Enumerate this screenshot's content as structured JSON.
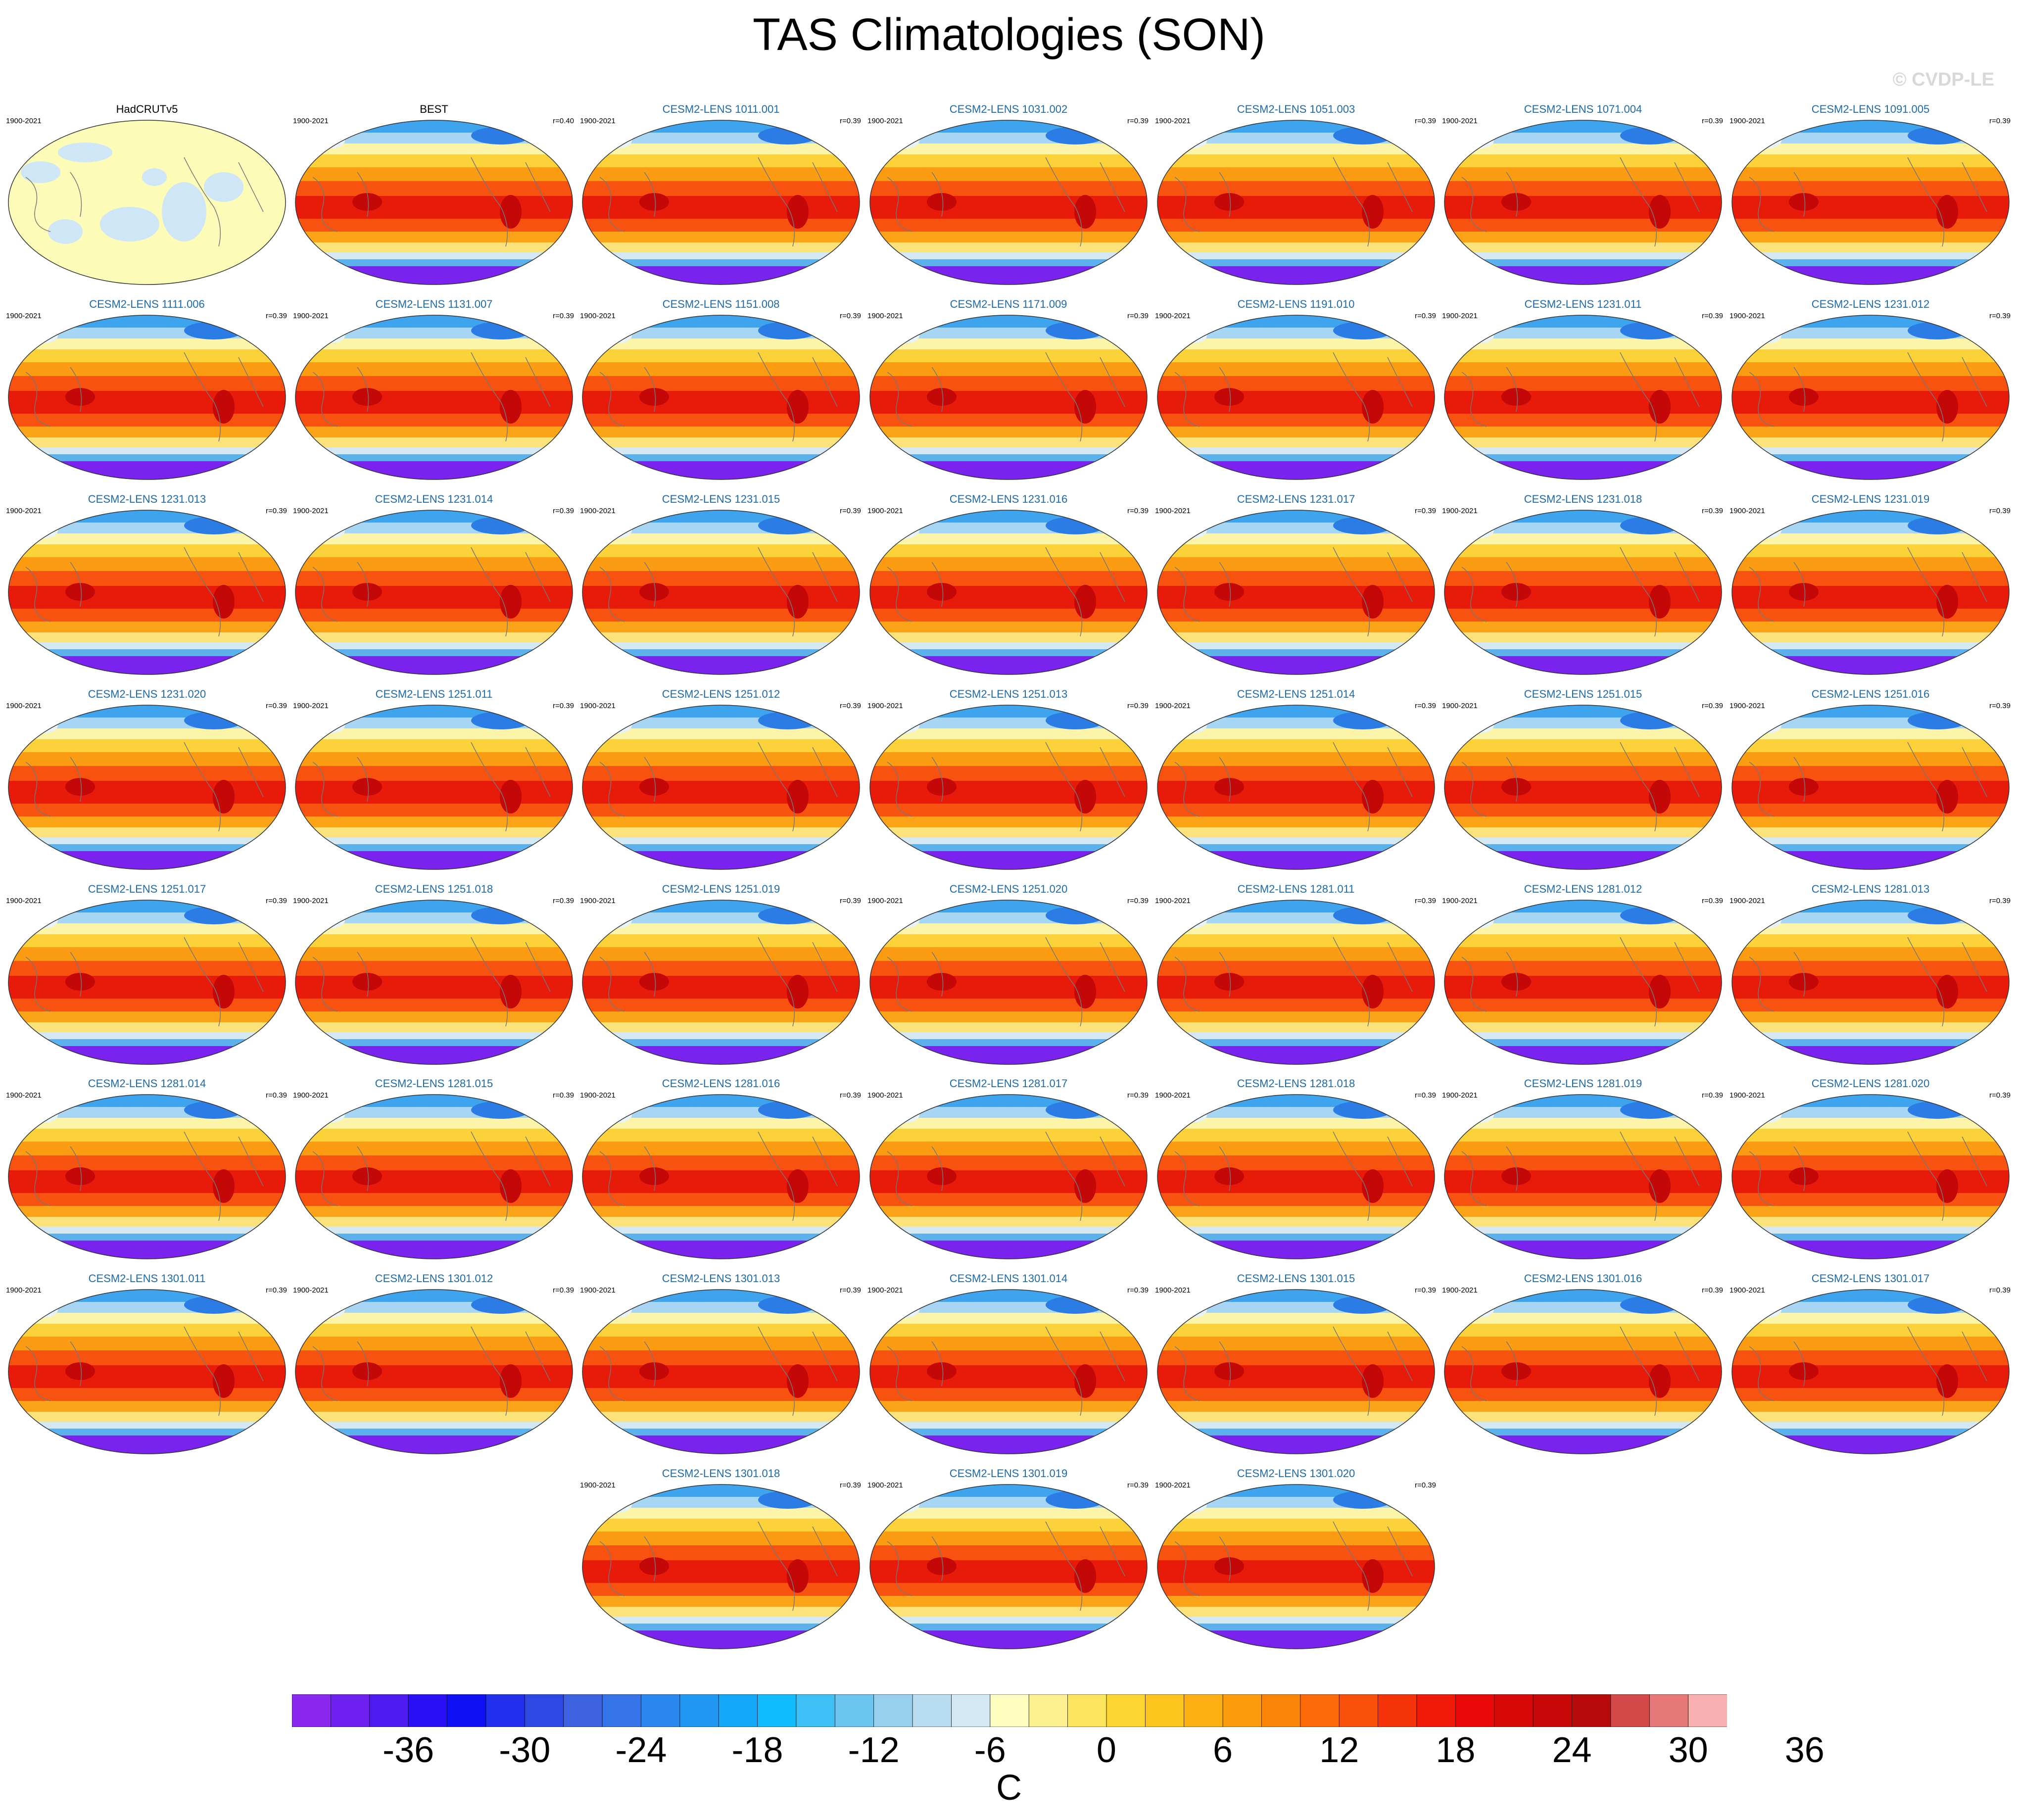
{
  "chart_data": {
    "type": "heatmap",
    "title": "TAS Climatologies (SON)",
    "watermark": "© CVDP-LE",
    "units": "C",
    "colorbar": {
      "ticks": [
        "-36",
        "-30",
        "-24",
        "-18",
        "-12",
        "-6",
        "0",
        "6",
        "12",
        "18",
        "24",
        "30",
        "36"
      ],
      "levels": [
        -42,
        -39,
        -36,
        -33,
        -30,
        -27,
        -24,
        -21,
        -18,
        -15,
        -12,
        -9,
        -6,
        -3,
        0,
        3,
        6,
        9,
        12,
        15,
        18,
        21,
        24,
        27,
        30,
        33,
        36,
        39,
        42
      ],
      "colors": [
        "#8a28f0",
        "#6e20f0",
        "#4c1cf2",
        "#2a10f4",
        "#1010f4",
        "#2030ec",
        "#2e48e4",
        "#3c62e0",
        "#3474e8",
        "#2a88ee",
        "#2098f4",
        "#16a8f8",
        "#10bcfc",
        "#3ec0f4",
        "#6cc6f0",
        "#96d0ee",
        "#b8dcf0",
        "#d4e8f4",
        "#fefec0",
        "#fcf090",
        "#fce45c",
        "#fcd630",
        "#fcc41c",
        "#fcb014",
        "#fc9c0c",
        "#fc8408",
        "#fc6a08",
        "#f85008",
        "#f43408",
        "#f01a08",
        "#e80808",
        "#d80808",
        "#c80808",
        "#b80a0a",
        "#d44848",
        "#e67878",
        "#f8b0b0"
      ]
    },
    "panels": [
      {
        "name": "HadCRUTv5",
        "period": "1900-2021",
        "r": "",
        "kind": "obs"
      },
      {
        "name": "BEST",
        "period": "1900-2021",
        "r": "r=0.40",
        "kind": "best"
      },
      {
        "name": "CESM2-LENS 1011.001",
        "period": "1900-2021",
        "r": "r=0.39",
        "kind": "model"
      },
      {
        "name": "CESM2-LENS 1031.002",
        "period": "1900-2021",
        "r": "r=0.39",
        "kind": "model"
      },
      {
        "name": "CESM2-LENS 1051.003",
        "period": "1900-2021",
        "r": "r=0.39",
        "kind": "model"
      },
      {
        "name": "CESM2-LENS 1071.004",
        "period": "1900-2021",
        "r": "r=0.39",
        "kind": "model"
      },
      {
        "name": "CESM2-LENS 1091.005",
        "period": "1900-2021",
        "r": "r=0.39",
        "kind": "model"
      },
      {
        "name": "CESM2-LENS 1111.006",
        "period": "1900-2021",
        "r": "r=0.39",
        "kind": "model"
      },
      {
        "name": "CESM2-LENS 1131.007",
        "period": "1900-2021",
        "r": "r=0.39",
        "kind": "model"
      },
      {
        "name": "CESM2-LENS 1151.008",
        "period": "1900-2021",
        "r": "r=0.39",
        "kind": "model"
      },
      {
        "name": "CESM2-LENS 1171.009",
        "period": "1900-2021",
        "r": "r=0.39",
        "kind": "model"
      },
      {
        "name": "CESM2-LENS 1191.010",
        "period": "1900-2021",
        "r": "r=0.39",
        "kind": "model"
      },
      {
        "name": "CESM2-LENS 1231.011",
        "period": "1900-2021",
        "r": "r=0.39",
        "kind": "model"
      },
      {
        "name": "CESM2-LENS 1231.012",
        "period": "1900-2021",
        "r": "r=0.39",
        "kind": "model"
      },
      {
        "name": "CESM2-LENS 1231.013",
        "period": "1900-2021",
        "r": "r=0.39",
        "kind": "model"
      },
      {
        "name": "CESM2-LENS 1231.014",
        "period": "1900-2021",
        "r": "r=0.39",
        "kind": "model"
      },
      {
        "name": "CESM2-LENS 1231.015",
        "period": "1900-2021",
        "r": "r=0.39",
        "kind": "model"
      },
      {
        "name": "CESM2-LENS 1231.016",
        "period": "1900-2021",
        "r": "r=0.39",
        "kind": "model"
      },
      {
        "name": "CESM2-LENS 1231.017",
        "period": "1900-2021",
        "r": "r=0.39",
        "kind": "model"
      },
      {
        "name": "CESM2-LENS 1231.018",
        "period": "1900-2021",
        "r": "r=0.39",
        "kind": "model"
      },
      {
        "name": "CESM2-LENS 1231.019",
        "period": "1900-2021",
        "r": "r=0.39",
        "kind": "model"
      },
      {
        "name": "CESM2-LENS 1231.020",
        "period": "1900-2021",
        "r": "r=0.39",
        "kind": "model"
      },
      {
        "name": "CESM2-LENS 1251.011",
        "period": "1900-2021",
        "r": "r=0.39",
        "kind": "model"
      },
      {
        "name": "CESM2-LENS 1251.012",
        "period": "1900-2021",
        "r": "r=0.39",
        "kind": "model"
      },
      {
        "name": "CESM2-LENS 1251.013",
        "period": "1900-2021",
        "r": "r=0.39",
        "kind": "model"
      },
      {
        "name": "CESM2-LENS 1251.014",
        "period": "1900-2021",
        "r": "r=0.39",
        "kind": "model"
      },
      {
        "name": "CESM2-LENS 1251.015",
        "period": "1900-2021",
        "r": "r=0.39",
        "kind": "model"
      },
      {
        "name": "CESM2-LENS 1251.016",
        "period": "1900-2021",
        "r": "r=0.39",
        "kind": "model"
      },
      {
        "name": "CESM2-LENS 1251.017",
        "period": "1900-2021",
        "r": "r=0.39",
        "kind": "model"
      },
      {
        "name": "CESM2-LENS 1251.018",
        "period": "1900-2021",
        "r": "r=0.39",
        "kind": "model"
      },
      {
        "name": "CESM2-LENS 1251.019",
        "period": "1900-2021",
        "r": "r=0.39",
        "kind": "model"
      },
      {
        "name": "CESM2-LENS 1251.020",
        "period": "1900-2021",
        "r": "r=0.39",
        "kind": "model"
      },
      {
        "name": "CESM2-LENS 1281.011",
        "period": "1900-2021",
        "r": "r=0.39",
        "kind": "model"
      },
      {
        "name": "CESM2-LENS 1281.012",
        "period": "1900-2021",
        "r": "r=0.39",
        "kind": "model"
      },
      {
        "name": "CESM2-LENS 1281.013",
        "period": "1900-2021",
        "r": "r=0.39",
        "kind": "model"
      },
      {
        "name": "CESM2-LENS 1281.014",
        "period": "1900-2021",
        "r": "r=0.39",
        "kind": "model"
      },
      {
        "name": "CESM2-LENS 1281.015",
        "period": "1900-2021",
        "r": "r=0.39",
        "kind": "model"
      },
      {
        "name": "CESM2-LENS 1281.016",
        "period": "1900-2021",
        "r": "r=0.39",
        "kind": "model"
      },
      {
        "name": "CESM2-LENS 1281.017",
        "period": "1900-2021",
        "r": "r=0.39",
        "kind": "model"
      },
      {
        "name": "CESM2-LENS 1281.018",
        "period": "1900-2021",
        "r": "r=0.39",
        "kind": "model"
      },
      {
        "name": "CESM2-LENS 1281.019",
        "period": "1900-2021",
        "r": "r=0.39",
        "kind": "model"
      },
      {
        "name": "CESM2-LENS 1281.020",
        "period": "1900-2021",
        "r": "r=0.39",
        "kind": "model"
      },
      {
        "name": "CESM2-LENS 1301.011",
        "period": "1900-2021",
        "r": "r=0.39",
        "kind": "model"
      },
      {
        "name": "CESM2-LENS 1301.012",
        "period": "1900-2021",
        "r": "r=0.39",
        "kind": "model"
      },
      {
        "name": "CESM2-LENS 1301.013",
        "period": "1900-2021",
        "r": "r=0.39",
        "kind": "model"
      },
      {
        "name": "CESM2-LENS 1301.014",
        "period": "1900-2021",
        "r": "r=0.39",
        "kind": "model"
      },
      {
        "name": "CESM2-LENS 1301.015",
        "period": "1900-2021",
        "r": "r=0.39",
        "kind": "model"
      },
      {
        "name": "CESM2-LENS 1301.016",
        "period": "1900-2021",
        "r": "r=0.39",
        "kind": "model"
      },
      {
        "name": "CESM2-LENS 1301.017",
        "period": "1900-2021",
        "r": "r=0.39",
        "kind": "model"
      },
      {
        "name": "CESM2-LENS 1301.018",
        "period": "1900-2021",
        "r": "r=0.39",
        "kind": "model"
      },
      {
        "name": "CESM2-LENS 1301.019",
        "period": "1900-2021",
        "r": "r=0.39",
        "kind": "model"
      },
      {
        "name": "CESM2-LENS 1301.020",
        "period": "1900-2021",
        "r": "r=0.39",
        "kind": "model"
      }
    ]
  }
}
